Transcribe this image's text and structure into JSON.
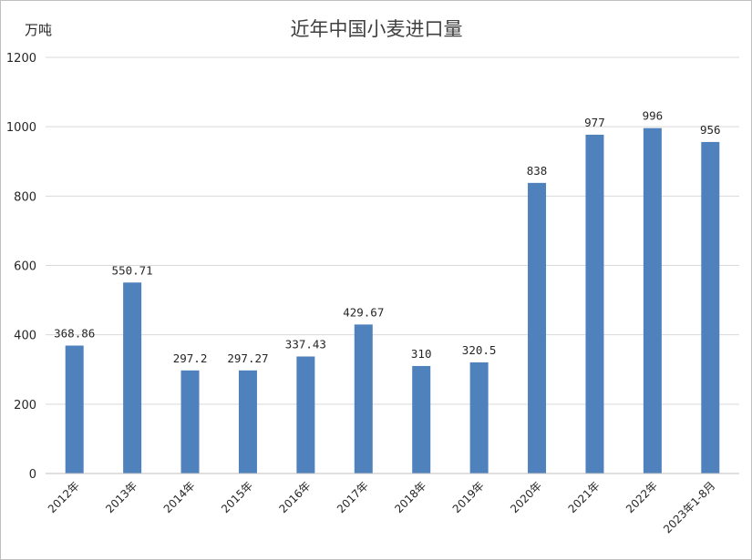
{
  "chart_data": {
    "type": "bar",
    "title": "近年中国小麦进口量",
    "ylabel": "万吨",
    "xlabel": "",
    "ylim": [
      0,
      1200
    ],
    "yticks": [
      0,
      200,
      400,
      600,
      800,
      1000,
      1200
    ],
    "grid": true,
    "legend": "none",
    "categories": [
      "2012年",
      "2013年",
      "2014年",
      "2015年",
      "2016年",
      "2017年",
      "2018年",
      "2019年",
      "2020年",
      "2021年",
      "2022年",
      "2023年1-8月"
    ],
    "values": [
      368.86,
      550.71,
      297.2,
      297.27,
      337.43,
      429.67,
      310,
      320.5,
      838,
      977,
      996,
      956
    ],
    "data_labels": [
      "368.86",
      "550.71",
      "297.2",
      "297.27",
      "337.43",
      "429.67",
      "310",
      "320.5",
      "838",
      "977",
      "996",
      "956"
    ],
    "bar_color": "#4f81bd",
    "grid_color": "#d9d9d9"
  }
}
